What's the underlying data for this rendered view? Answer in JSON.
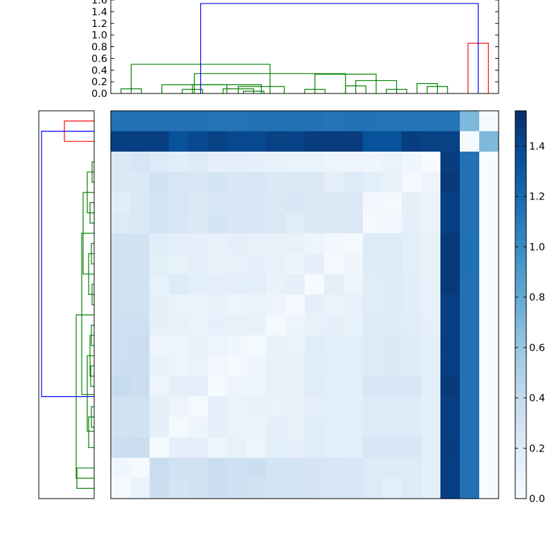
{
  "chart_data": {
    "type": "heatmap",
    "title": "",
    "colormap": "Blues",
    "colors": {
      "dendrogram_main": "#008000",
      "dendrogram_outlier": "#ff0000",
      "dendrogram_root": "#0000ff",
      "heatmap_low": "#f7fbff",
      "heatmap_high": "#08306b"
    },
    "top_dendrogram": {
      "ylim": [
        0,
        1.6
      ],
      "yticks": [
        "0.0",
        "0.2",
        "0.4",
        "0.6",
        "0.8",
        "1.0",
        "1.2",
        "1.4",
        "1.6"
      ],
      "links": [
        {
          "leaves": [
            0,
            1
          ],
          "height": 0.08,
          "color": "main"
        },
        {
          "leaves": [
            6,
            7
          ],
          "height": 0.04,
          "color": "main"
        },
        {
          "leaves": [
            5,
            6.5
          ],
          "height": 0.08,
          "color": "main"
        },
        {
          "leaves": [
            3,
            4
          ],
          "height": 0.07,
          "color": "main"
        },
        {
          "leaves": [
            5.75,
            8
          ],
          "height": 0.12,
          "color": "main"
        },
        {
          "leaves": [
            3.5,
            6.875
          ],
          "height": 0.15,
          "color": "main"
        },
        {
          "leaves": [
            2,
            5.1875
          ],
          "height": 0.15,
          "color": "main"
        },
        {
          "leaves": [
            9,
            10
          ],
          "height": 0.07,
          "color": "main"
        },
        {
          "leaves": [
            11,
            12
          ],
          "height": 0.13,
          "color": "main"
        },
        {
          "leaves": [
            13,
            14
          ],
          "height": 0.07,
          "color": "main"
        },
        {
          "leaves": [
            15,
            16
          ],
          "height": 0.12,
          "color": "main"
        },
        {
          "leaves": [
            14.5,
            15.5
          ],
          "height": 0.17,
          "color": "main"
        },
        {
          "leaves": [
            11.5,
            13.5
          ],
          "height": 0.22,
          "color": "main"
        },
        {
          "leaves": [
            9.5,
            12.5
          ],
          "height": 0.33,
          "color": "main"
        },
        {
          "leaves": [
            3.59,
            11.0
          ],
          "height": 0.34,
          "color": "main"
        },
        {
          "leaves": [
            0.5,
            7.3
          ],
          "height": 0.5,
          "color": "main"
        },
        {
          "leaves": [
            17,
            18
          ],
          "height": 0.86,
          "color": "outlier"
        },
        {
          "leaves": [
            3.9,
            17.5
          ],
          "height": 1.54,
          "color": "root"
        }
      ]
    },
    "colorbar": {
      "range": [
        0,
        1.54
      ],
      "ticks": [
        "0.0",
        "0.2",
        "0.4",
        "0.6",
        "0.8",
        "1.0",
        "1.2",
        "1.4"
      ]
    },
    "heatmap_values": [
      [
        1.15,
        1.15,
        1.15,
        1.15,
        1.15,
        1.14,
        1.14,
        1.15,
        1.15,
        1.15,
        1.15,
        1.14,
        1.15,
        1.15,
        1.14,
        1.14,
        1.14,
        1.14,
        0.7,
        0.02
      ],
      [
        1.45,
        1.45,
        1.45,
        1.35,
        1.4,
        1.44,
        1.4,
        1.4,
        1.44,
        1.43,
        1.47,
        1.47,
        1.47,
        1.35,
        1.35,
        1.46,
        1.44,
        1.44,
        0.02,
        0.7
      ],
      [
        0.22,
        0.25,
        0.2,
        0.17,
        0.19,
        0.15,
        0.15,
        0.13,
        0.12,
        0.1,
        0.1,
        0.08,
        0.08,
        0.07,
        0.1,
        0.06,
        0.0,
        1.46,
        1.15,
        0.0
      ],
      [
        0.22,
        0.22,
        0.3,
        0.25,
        0.25,
        0.27,
        0.24,
        0.25,
        0.22,
        0.22,
        0.22,
        0.15,
        0.2,
        0.16,
        0.12,
        0.03,
        0.08,
        1.48,
        1.15,
        0.0
      ],
      [
        0.17,
        0.22,
        0.28,
        0.25,
        0.22,
        0.24,
        0.24,
        0.24,
        0.23,
        0.24,
        0.22,
        0.22,
        0.22,
        0.05,
        0.02,
        0.15,
        0.1,
        1.45,
        1.15,
        0.0
      ],
      [
        0.2,
        0.22,
        0.28,
        0.24,
        0.22,
        0.27,
        0.24,
        0.24,
        0.23,
        0.18,
        0.22,
        0.22,
        0.22,
        0.02,
        0.05,
        0.15,
        0.1,
        1.45,
        1.15,
        0.0
      ],
      [
        0.3,
        0.3,
        0.18,
        0.15,
        0.15,
        0.12,
        0.14,
        0.12,
        0.12,
        0.12,
        0.08,
        0.05,
        0.02,
        0.2,
        0.2,
        0.16,
        0.12,
        1.49,
        1.16,
        0.0
      ],
      [
        0.3,
        0.3,
        0.16,
        0.12,
        0.14,
        0.11,
        0.12,
        0.14,
        0.12,
        0.09,
        0.15,
        0.02,
        0.06,
        0.2,
        0.2,
        0.16,
        0.12,
        1.49,
        1.16,
        0.0
      ],
      [
        0.3,
        0.3,
        0.12,
        0.2,
        0.16,
        0.14,
        0.15,
        0.16,
        0.11,
        0.14,
        0.01,
        0.14,
        0.08,
        0.18,
        0.2,
        0.17,
        0.12,
        1.49,
        1.15,
        0.0
      ],
      [
        0.3,
        0.3,
        0.14,
        0.1,
        0.1,
        0.11,
        0.08,
        0.1,
        0.08,
        0.03,
        0.15,
        0.1,
        0.12,
        0.18,
        0.2,
        0.17,
        0.12,
        1.45,
        1.15,
        0.0
      ],
      [
        0.32,
        0.32,
        0.13,
        0.12,
        0.1,
        0.13,
        0.12,
        0.12,
        0.02,
        0.08,
        0.12,
        0.13,
        0.12,
        0.2,
        0.2,
        0.18,
        0.13,
        1.45,
        1.15,
        0.0
      ],
      [
        0.33,
        0.35,
        0.08,
        0.08,
        0.12,
        0.08,
        0.06,
        0.02,
        0.12,
        0.1,
        0.18,
        0.16,
        0.16,
        0.2,
        0.21,
        0.2,
        0.16,
        1.45,
        1.15,
        0.0
      ],
      [
        0.34,
        0.34,
        0.12,
        0.08,
        0.1,
        0.05,
        0.02,
        0.06,
        0.12,
        0.11,
        0.17,
        0.16,
        0.16,
        0.2,
        0.21,
        0.2,
        0.16,
        1.45,
        1.15,
        0.0
      ],
      [
        0.38,
        0.35,
        0.08,
        0.15,
        0.15,
        0.02,
        0.08,
        0.08,
        0.12,
        0.12,
        0.18,
        0.16,
        0.16,
        0.25,
        0.25,
        0.24,
        0.16,
        1.48,
        1.15,
        0.0
      ],
      [
        0.3,
        0.3,
        0.14,
        0.08,
        0.02,
        0.14,
        0.1,
        0.12,
        0.1,
        0.12,
        0.14,
        0.16,
        0.16,
        0.2,
        0.2,
        0.2,
        0.16,
        1.45,
        1.15,
        0.0
      ],
      [
        0.3,
        0.3,
        0.14,
        0.02,
        0.08,
        0.15,
        0.1,
        0.1,
        0.14,
        0.12,
        0.18,
        0.16,
        0.16,
        0.2,
        0.2,
        0.2,
        0.16,
        1.45,
        1.15,
        0.0
      ],
      [
        0.34,
        0.36,
        0.02,
        0.14,
        0.14,
        0.08,
        0.12,
        0.08,
        0.16,
        0.14,
        0.18,
        0.16,
        0.16,
        0.24,
        0.24,
        0.24,
        0.16,
        1.46,
        1.15,
        0.0
      ],
      [
        0.06,
        0.02,
        0.36,
        0.3,
        0.3,
        0.35,
        0.32,
        0.34,
        0.28,
        0.28,
        0.26,
        0.25,
        0.24,
        0.2,
        0.2,
        0.2,
        0.14,
        1.45,
        1.15,
        0.0
      ],
      [
        0.02,
        0.1,
        0.34,
        0.28,
        0.3,
        0.34,
        0.32,
        0.3,
        0.28,
        0.28,
        0.26,
        0.25,
        0.24,
        0.2,
        0.16,
        0.2,
        0.14,
        1.45,
        1.15,
        0.0
      ]
    ]
  }
}
